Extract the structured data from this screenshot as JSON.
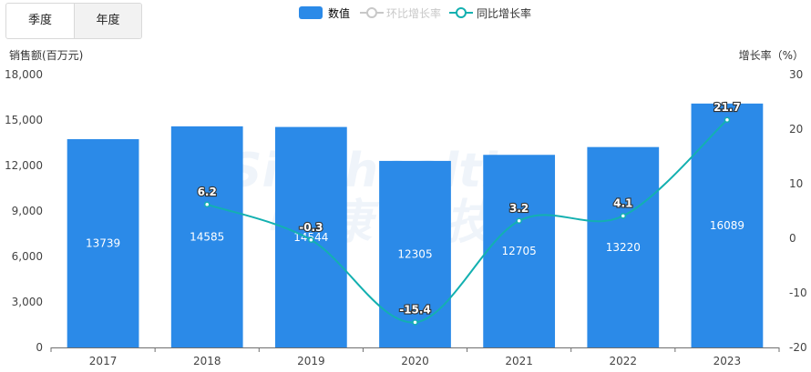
{
  "tabs": [
    {
      "label": "季度",
      "active": false
    },
    {
      "label": "年度",
      "active": true
    }
  ],
  "legend": {
    "bar": "数值",
    "qoq": "环比增长率",
    "yoy": "同比增长率"
  },
  "watermark": {
    "latin": "Sinohealth",
    "cn": "中康科技"
  },
  "colors": {
    "bar": "#2b8ae8",
    "yoy": "#13b0b0",
    "qoq_inactive": "#c8c8c8"
  },
  "chart_data": {
    "type": "bar",
    "categories": [
      "2017",
      "2018",
      "2019",
      "2020",
      "2021",
      "2022",
      "2023"
    ],
    "ylabel_left": "销售额(百万元)",
    "ylabel_right": "增长率（%）",
    "ylim_left": [
      0,
      18000
    ],
    "yticks_left": [
      "0",
      "3,000",
      "6,000",
      "9,000",
      "12,000",
      "15,000",
      "18,000"
    ],
    "ylim_right": [
      -20,
      30
    ],
    "yticks_right": [
      "-20",
      "-10",
      "0",
      "10",
      "20",
      "30"
    ],
    "series": [
      {
        "name": "数值",
        "type": "bar",
        "axis": "left",
        "values": [
          13739,
          14585,
          14544,
          12305,
          12705,
          13220,
          16089
        ],
        "labels": [
          "13739",
          "14585",
          "14544",
          "12305",
          "12705",
          "13220",
          "16089"
        ]
      },
      {
        "name": "同比增长率",
        "type": "line",
        "axis": "right",
        "smooth": true,
        "values": [
          null,
          6.2,
          -0.3,
          -15.4,
          3.2,
          4.1,
          21.7
        ],
        "labels": [
          "",
          "6.2",
          "-0.3",
          "-15.4",
          "3.2",
          "4.1",
          "21.7"
        ]
      }
    ],
    "legend_position": "top-center",
    "grid": false
  }
}
